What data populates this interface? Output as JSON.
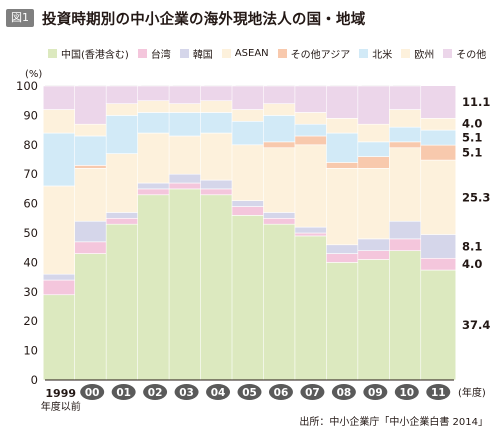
{
  "header": {
    "badge": "図1",
    "title": "投資時期別の中小企業の海外現地法人の国・地域"
  },
  "source": "出所：中小企業庁「中小企業白書 2014」",
  "chart_data": {
    "type": "bar",
    "stacked": true,
    "title": "投資時期別の中小企業の海外現地法人の国・地域",
    "ylabel": "(%)",
    "xlabel": "(年度)",
    "ylim": [
      0,
      100
    ],
    "yticks": [
      0,
      10,
      20,
      30,
      40,
      50,
      60,
      70,
      80,
      90,
      100
    ],
    "grid": true,
    "legend": "top",
    "categories": [
      "1999\n年度以前",
      "00",
      "01",
      "02",
      "03",
      "04",
      "05",
      "06",
      "07",
      "08",
      "09",
      "10",
      "11"
    ],
    "series": [
      {
        "name": "中国(香港含む)",
        "color": "#dce9bf",
        "values": [
          29,
          43,
          53,
          63,
          65,
          63,
          56,
          53,
          49,
          40,
          41,
          44,
          37.4
        ]
      },
      {
        "name": "台湾",
        "color": "#f4c6dc",
        "values": [
          5,
          4,
          2,
          2,
          2,
          2,
          3,
          2,
          1,
          3,
          3,
          4,
          4.0
        ]
      },
      {
        "name": "韓国",
        "color": "#d5d6ea",
        "values": [
          2,
          7,
          2,
          2,
          3,
          3,
          2,
          2,
          2,
          3,
          4,
          6,
          8.1
        ]
      },
      {
        "name": "ASEAN",
        "color": "#fdf1dc",
        "values": [
          30,
          18,
          20,
          17,
          13,
          16,
          19,
          22,
          28,
          26,
          24,
          25,
          25.3
        ]
      },
      {
        "name": "その他アジア",
        "color": "#f8c9ad",
        "values": [
          0,
          1,
          0,
          0,
          0,
          0,
          0,
          2,
          3,
          2,
          4,
          2,
          5.1
        ]
      },
      {
        "name": "北米",
        "color": "#d2eaf7",
        "values": [
          18,
          10,
          13,
          7,
          8,
          7,
          8,
          9,
          4,
          10,
          5,
          5,
          5.1
        ]
      },
      {
        "name": "欧州",
        "color": "#fdf1dc",
        "values": [
          8,
          4,
          4,
          4,
          3,
          4,
          4,
          4,
          4,
          5,
          6,
          6,
          4.0
        ]
      },
      {
        "name": "その他",
        "color": "#ecd6ea",
        "values": [
          8,
          13,
          6,
          5,
          6,
          5,
          8,
          6,
          9,
          11,
          13,
          8,
          11.1
        ]
      }
    ],
    "value_labels": [
      "37.4",
      "4.0",
      "8.1",
      "25.3",
      "5.1",
      "5.1",
      "4.0",
      "11.1"
    ]
  }
}
